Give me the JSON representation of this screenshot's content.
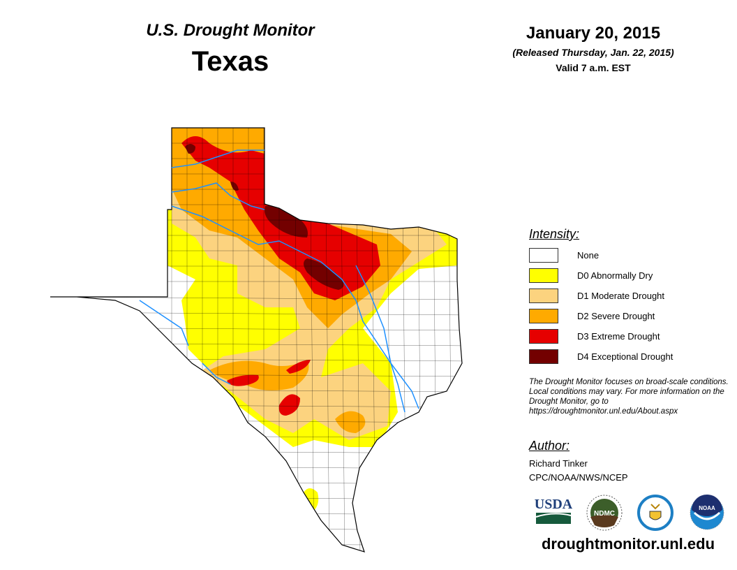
{
  "header": {
    "title": "U.S. Drought Monitor",
    "region": "Texas",
    "date": "January 20, 2015",
    "released": "(Released Thursday, Jan. 22, 2015)",
    "valid": "Valid 7 a.m. EST"
  },
  "legend": {
    "title": "Intensity:",
    "items": [
      {
        "label": "None",
        "color": "#ffffff"
      },
      {
        "label": "D0 Abnormally Dry",
        "color": "#ffff00"
      },
      {
        "label": "D1 Moderate Drought",
        "color": "#fcd37f"
      },
      {
        "label": "D2 Severe Drought",
        "color": "#ffaa00"
      },
      {
        "label": "D3 Extreme Drought",
        "color": "#e60000"
      },
      {
        "label": "D4 Exceptional Drought",
        "color": "#730000"
      }
    ]
  },
  "note": "The Drought Monitor focuses on broad-scale conditions. Local conditions may vary. For more information on the Drought Monitor, go to https://droughtmonitor.unl.edu/About.aspx",
  "author": {
    "heading": "Author:",
    "name": "Richard Tinker",
    "org": "CPC/NOAA/NWS/NCEP"
  },
  "logos": {
    "usda": "USDA",
    "ndmc": "NDMC",
    "noaa": "NOAA"
  },
  "footer_url": "droughtmonitor.unl.edu",
  "river_color": "#1e90ff"
}
